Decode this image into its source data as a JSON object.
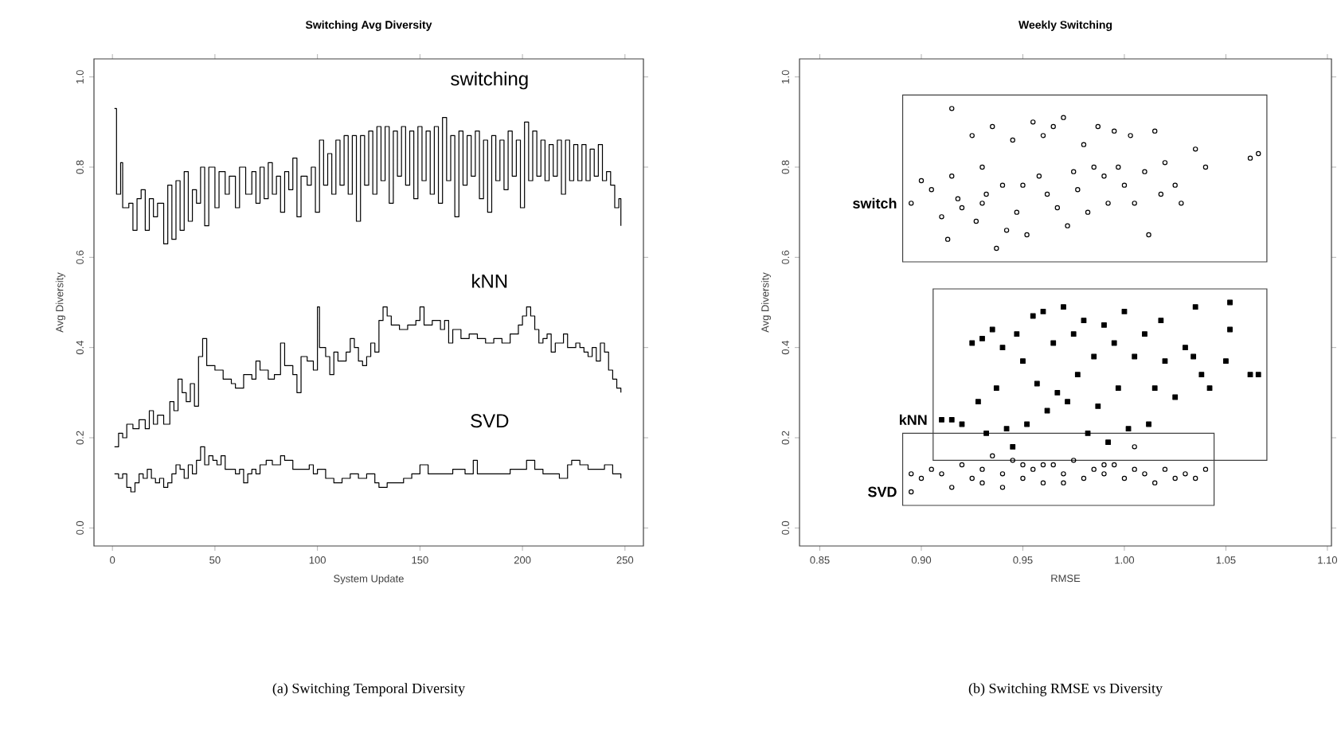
{
  "chart_data": [
    {
      "type": "step",
      "title": "Switching Avg Diversity",
      "xlabel": "System Update",
      "ylabel": "Avg Diversity",
      "annotations": [
        "(a) Switching Temporal Diversity"
      ],
      "xlim": [
        -9,
        259
      ],
      "ylim": [
        -0.04,
        1.04
      ],
      "xticks": [
        0,
        50,
        100,
        150,
        200,
        250
      ],
      "yticks": [
        {
          "value": 0,
          "label": "0.0"
        },
        {
          "value": 0.2,
          "label": "0.2"
        },
        {
          "value": 0.4,
          "label": "0.4"
        },
        {
          "value": 0.6,
          "label": "0.6"
        },
        {
          "value": 0.8,
          "label": "0.8"
        },
        {
          "value": 1,
          "label": "1.0"
        }
      ],
      "marker": "none",
      "line_style": "solid",
      "series": [
        {
          "name": "switching",
          "color": "#000000",
          "x": [
            1,
            2,
            4,
            5,
            8,
            10,
            12,
            14,
            16,
            18,
            20,
            22,
            25,
            27,
            29,
            31,
            33,
            35,
            37,
            39,
            41,
            43,
            45,
            47,
            50,
            52,
            55,
            57,
            60,
            62,
            65,
            68,
            70,
            72,
            74,
            76,
            78,
            80,
            82,
            84,
            86,
            88,
            90,
            92,
            95,
            97,
            99,
            101,
            103,
            105,
            107,
            109,
            111,
            113,
            115,
            117,
            119,
            121,
            123,
            125,
            127,
            129,
            131,
            133,
            135,
            137,
            139,
            141,
            143,
            145,
            147,
            149,
            151,
            153,
            155,
            157,
            159,
            161,
            163,
            165,
            167,
            169,
            171,
            173,
            175,
            177,
            179,
            181,
            183,
            185,
            187,
            189,
            191,
            193,
            195,
            197,
            199,
            201,
            203,
            205,
            207,
            209,
            211,
            213,
            215,
            217,
            219,
            221,
            223,
            225,
            227,
            229,
            231,
            233,
            235,
            237,
            239,
            241,
            243,
            245,
            247,
            248
          ],
          "values": [
            0.93,
            0.74,
            0.81,
            0.71,
            0.72,
            0.66,
            0.73,
            0.75,
            0.66,
            0.73,
            0.69,
            0.72,
            0.63,
            0.76,
            0.64,
            0.77,
            0.66,
            0.79,
            0.68,
            0.75,
            0.72,
            0.8,
            0.67,
            0.8,
            0.71,
            0.79,
            0.74,
            0.78,
            0.71,
            0.8,
            0.74,
            0.79,
            0.72,
            0.8,
            0.73,
            0.81,
            0.74,
            0.78,
            0.7,
            0.79,
            0.75,
            0.82,
            0.69,
            0.78,
            0.76,
            0.8,
            0.7,
            0.86,
            0.76,
            0.83,
            0.74,
            0.86,
            0.76,
            0.87,
            0.74,
            0.87,
            0.68,
            0.87,
            0.76,
            0.88,
            0.74,
            0.89,
            0.77,
            0.89,
            0.72,
            0.88,
            0.78,
            0.89,
            0.76,
            0.88,
            0.73,
            0.89,
            0.77,
            0.88,
            0.74,
            0.89,
            0.72,
            0.91,
            0.77,
            0.87,
            0.69,
            0.88,
            0.76,
            0.87,
            0.78,
            0.88,
            0.73,
            0.86,
            0.7,
            0.87,
            0.77,
            0.86,
            0.75,
            0.88,
            0.78,
            0.86,
            0.71,
            0.9,
            0.77,
            0.88,
            0.78,
            0.86,
            0.77,
            0.85,
            0.78,
            0.86,
            0.74,
            0.86,
            0.77,
            0.85,
            0.77,
            0.85,
            0.77,
            0.84,
            0.78,
            0.85,
            0.77,
            0.79,
            0.76,
            0.71,
            0.73,
            0.67
          ]
        },
        {
          "name": "kNN",
          "color": "#000000",
          "x": [
            1,
            3,
            5,
            7,
            10,
            13,
            16,
            18,
            20,
            22,
            25,
            28,
            30,
            32,
            34,
            36,
            38,
            40,
            42,
            44,
            46,
            50,
            54,
            58,
            60,
            64,
            68,
            70,
            72,
            76,
            79,
            82,
            84,
            88,
            90,
            92,
            95,
            98,
            100,
            101,
            104,
            106,
            108,
            110,
            114,
            116,
            118,
            120,
            122,
            124,
            126,
            128,
            130,
            132,
            134,
            136,
            140,
            144,
            148,
            150,
            152,
            156,
            160,
            162,
            164,
            166,
            170,
            174,
            178,
            182,
            186,
            190,
            194,
            198,
            200,
            202,
            204,
            206,
            208,
            210,
            212,
            214,
            216,
            220,
            222,
            226,
            228,
            230,
            232,
            234,
            236,
            238,
            240,
            242,
            244,
            246,
            248
          ],
          "values": [
            0.18,
            0.21,
            0.2,
            0.23,
            0.22,
            0.24,
            0.22,
            0.26,
            0.23,
            0.25,
            0.23,
            0.28,
            0.26,
            0.33,
            0.3,
            0.28,
            0.32,
            0.27,
            0.38,
            0.42,
            0.36,
            0.35,
            0.33,
            0.32,
            0.31,
            0.34,
            0.33,
            0.37,
            0.35,
            0.33,
            0.34,
            0.41,
            0.36,
            0.34,
            0.3,
            0.38,
            0.37,
            0.35,
            0.49,
            0.4,
            0.38,
            0.34,
            0.39,
            0.37,
            0.39,
            0.42,
            0.4,
            0.37,
            0.36,
            0.38,
            0.41,
            0.39,
            0.46,
            0.49,
            0.47,
            0.45,
            0.44,
            0.45,
            0.46,
            0.49,
            0.45,
            0.46,
            0.44,
            0.46,
            0.41,
            0.44,
            0.42,
            0.43,
            0.42,
            0.41,
            0.42,
            0.41,
            0.43,
            0.45,
            0.47,
            0.49,
            0.47,
            0.44,
            0.41,
            0.42,
            0.43,
            0.39,
            0.41,
            0.43,
            0.4,
            0.41,
            0.4,
            0.39,
            0.38,
            0.4,
            0.37,
            0.41,
            0.39,
            0.35,
            0.33,
            0.31,
            0.3
          ]
        },
        {
          "name": "SVD",
          "color": "#000000",
          "x": [
            1,
            3,
            5,
            7,
            9,
            11,
            13,
            15,
            17,
            19,
            21,
            23,
            25,
            27,
            29,
            31,
            33,
            35,
            37,
            39,
            41,
            43,
            45,
            47,
            49,
            51,
            53,
            55,
            57,
            60,
            62,
            64,
            66,
            68,
            70,
            72,
            75,
            78,
            82,
            84,
            88,
            92,
            96,
            98,
            100,
            104,
            108,
            112,
            116,
            120,
            124,
            128,
            130,
            134,
            138,
            142,
            146,
            150,
            154,
            160,
            166,
            172,
            176,
            178,
            184,
            190,
            194,
            198,
            202,
            206,
            210,
            214,
            218,
            222,
            224,
            228,
            232,
            236,
            240,
            244,
            248
          ],
          "values": [
            0.12,
            0.11,
            0.12,
            0.09,
            0.08,
            0.1,
            0.12,
            0.11,
            0.13,
            0.11,
            0.1,
            0.11,
            0.09,
            0.1,
            0.12,
            0.14,
            0.13,
            0.11,
            0.14,
            0.12,
            0.15,
            0.18,
            0.14,
            0.16,
            0.15,
            0.14,
            0.16,
            0.13,
            0.13,
            0.12,
            0.13,
            0.1,
            0.12,
            0.13,
            0.12,
            0.14,
            0.15,
            0.14,
            0.16,
            0.15,
            0.13,
            0.13,
            0.14,
            0.12,
            0.13,
            0.11,
            0.1,
            0.11,
            0.12,
            0.11,
            0.12,
            0.1,
            0.09,
            0.1,
            0.1,
            0.11,
            0.12,
            0.14,
            0.12,
            0.12,
            0.13,
            0.12,
            0.15,
            0.12,
            0.12,
            0.12,
            0.13,
            0.13,
            0.15,
            0.13,
            0.12,
            0.12,
            0.11,
            0.14,
            0.15,
            0.14,
            0.13,
            0.13,
            0.14,
            0.12,
            0.11
          ]
        }
      ]
    },
    {
      "type": "scatter",
      "title": "Weekly Switching",
      "xlabel": "RMSE",
      "ylabel": "Avg Diversity",
      "annotations": [
        "(b) Switching RMSE vs Diversity"
      ],
      "xlim": [
        0.84,
        1.102
      ],
      "ylim": [
        -0.04,
        1.04
      ],
      "xticks": [
        {
          "value": 0.85,
          "label": "0.85"
        },
        {
          "value": 0.9,
          "label": "0.90"
        },
        {
          "value": 0.95,
          "label": "0.95"
        },
        {
          "value": 1,
          "label": "1.00"
        },
        {
          "value": 1.05,
          "label": "1.05"
        },
        {
          "value": 1.1,
          "label": "1.10"
        }
      ],
      "yticks": [
        {
          "value": 0,
          "label": "0.0"
        },
        {
          "value": 0.2,
          "label": "0.2"
        },
        {
          "value": 0.4,
          "label": "0.4"
        },
        {
          "value": 0.6,
          "label": "0.6"
        },
        {
          "value": 0.8,
          "label": "0.8"
        },
        {
          "value": 1,
          "label": "1.0"
        }
      ],
      "series": [
        {
          "name": "switch",
          "color": "#000000",
          "marker": "circle",
          "x": [
            0.895,
            0.9,
            0.905,
            0.91,
            0.913,
            0.915,
            0.918,
            0.92,
            0.925,
            0.927,
            0.93,
            0.932,
            0.935,
            0.937,
            0.94,
            0.942,
            0.945,
            0.947,
            0.95,
            0.952,
            0.955,
            0.958,
            0.96,
            0.962,
            0.965,
            0.967,
            0.97,
            0.972,
            0.975,
            0.977,
            0.98,
            0.982,
            0.985,
            0.987,
            0.99,
            0.992,
            0.995,
            0.997,
            1.0,
            1.003,
            1.005,
            1.01,
            1.012,
            1.015,
            1.018,
            1.02,
            1.025,
            1.028,
            1.035,
            1.04,
            1.062,
            1.066,
            0.915,
            0.93
          ],
          "values": [
            0.72,
            0.77,
            0.75,
            0.69,
            0.64,
            0.78,
            0.73,
            0.71,
            0.87,
            0.68,
            0.8,
            0.74,
            0.89,
            0.62,
            0.76,
            0.66,
            0.86,
            0.7,
            0.76,
            0.65,
            0.9,
            0.78,
            0.87,
            0.74,
            0.89,
            0.71,
            0.91,
            0.67,
            0.79,
            0.75,
            0.85,
            0.7,
            0.8,
            0.89,
            0.78,
            0.72,
            0.88,
            0.8,
            0.76,
            0.87,
            0.72,
            0.79,
            0.65,
            0.88,
            0.74,
            0.81,
            0.76,
            0.72,
            0.84,
            0.8,
            0.82,
            0.83,
            0.93,
            0.72
          ]
        },
        {
          "name": "kNN",
          "color": "#000000",
          "marker": "square",
          "x": [
            0.91,
            0.915,
            0.92,
            0.925,
            0.928,
            0.93,
            0.932,
            0.935,
            0.937,
            0.94,
            0.942,
            0.945,
            0.947,
            0.95,
            0.952,
            0.955,
            0.957,
            0.96,
            0.962,
            0.965,
            0.967,
            0.97,
            0.972,
            0.975,
            0.977,
            0.98,
            0.982,
            0.985,
            0.987,
            0.99,
            0.992,
            0.995,
            0.997,
            1.0,
            1.002,
            1.005,
            1.01,
            1.012,
            1.015,
            1.018,
            1.02,
            1.025,
            1.03,
            1.034,
            1.038,
            1.042,
            1.05,
            1.052,
            1.052,
            1.035,
            1.062,
            1.066
          ],
          "values": [
            0.24,
            0.24,
            0.23,
            0.41,
            0.28,
            0.42,
            0.21,
            0.44,
            0.31,
            0.4,
            0.22,
            0.18,
            0.43,
            0.37,
            0.23,
            0.47,
            0.32,
            0.48,
            0.26,
            0.41,
            0.3,
            0.49,
            0.28,
            0.43,
            0.34,
            0.46,
            0.21,
            0.38,
            0.27,
            0.45,
            0.19,
            0.41,
            0.31,
            0.48,
            0.22,
            0.38,
            0.43,
            0.23,
            0.31,
            0.46,
            0.37,
            0.29,
            0.4,
            0.38,
            0.34,
            0.31,
            0.37,
            0.44,
            0.5,
            0.49,
            0.34,
            0.34
          ]
        },
        {
          "name": "SVD",
          "color": "#000000",
          "marker": "circle",
          "x": [
            0.895,
            0.895,
            0.9,
            0.905,
            0.91,
            0.915,
            0.92,
            0.925,
            0.93,
            0.935,
            0.94,
            0.945,
            0.95,
            0.955,
            0.96,
            0.965,
            0.97,
            0.975,
            0.98,
            0.985,
            0.99,
            0.995,
            1.0,
            1.005,
            1.01,
            1.015,
            1.02,
            1.025,
            1.03,
            1.035,
            1.04,
            0.93,
            0.95,
            0.97,
            0.96,
            0.94,
            0.99,
            1.005
          ],
          "values": [
            0.08,
            0.12,
            0.11,
            0.13,
            0.12,
            0.09,
            0.14,
            0.11,
            0.13,
            0.16,
            0.12,
            0.15,
            0.11,
            0.13,
            0.1,
            0.14,
            0.12,
            0.15,
            0.11,
            0.13,
            0.12,
            0.14,
            0.11,
            0.13,
            0.12,
            0.1,
            0.13,
            0.11,
            0.12,
            0.11,
            0.13,
            0.1,
            0.14,
            0.1,
            0.14,
            0.09,
            0.14,
            0.18
          ]
        }
      ]
    }
  ]
}
